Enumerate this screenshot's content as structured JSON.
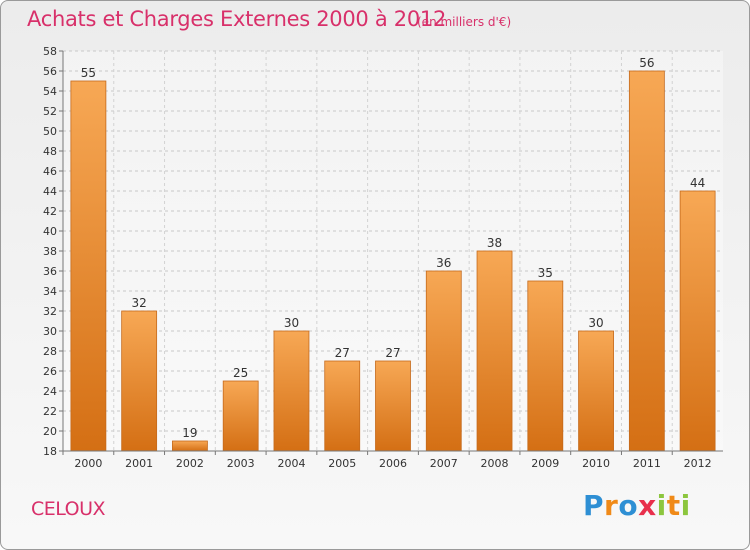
{
  "header": {
    "title": "Achats et Charges Externes 2000 à 2012",
    "unit": "(en milliers d'€)"
  },
  "footer": {
    "place": "CELOUX",
    "logo": [
      "P",
      "r",
      "o",
      "x",
      "i",
      "t",
      "i"
    ],
    "logo_colors": [
      "#2e8fd4",
      "#f08a18",
      "#2e8fd4",
      "#e8304c",
      "#8cc63e",
      "#f08a18",
      "#8cc63e"
    ]
  },
  "colors": {
    "bar_light": "#f7a855",
    "bar_dark": "#d46f14",
    "title": "#d8306a"
  },
  "chart_data": {
    "type": "bar",
    "title": "Achats et Charges Externes 2000 à 2012",
    "subtitle": "(en milliers d'€)",
    "categories": [
      "2000",
      "2001",
      "2002",
      "2003",
      "2004",
      "2005",
      "2006",
      "2007",
      "2008",
      "2009",
      "2010",
      "2011",
      "2012"
    ],
    "values": [
      55,
      32,
      19,
      25,
      30,
      27,
      27,
      36,
      38,
      35,
      30,
      56,
      44
    ],
    "ylim": [
      18,
      58
    ],
    "yticks": [
      18,
      20,
      22,
      24,
      26,
      28,
      30,
      32,
      34,
      36,
      38,
      40,
      42,
      44,
      46,
      48,
      50,
      52,
      54,
      56,
      58
    ],
    "grid": true,
    "legend": "none"
  }
}
